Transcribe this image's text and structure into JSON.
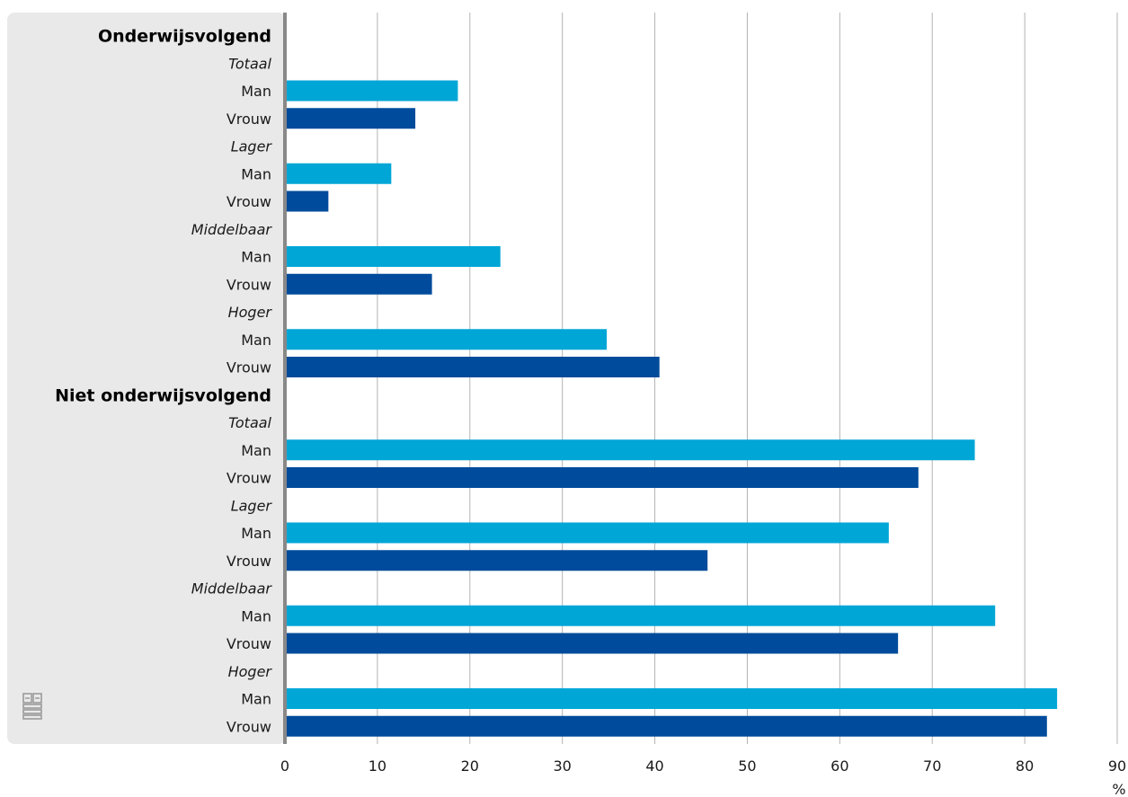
{
  "chart_data": {
    "type": "bar",
    "orientation": "horizontal",
    "xlabel": "%",
    "xlim": [
      0,
      90
    ],
    "xticks": [
      "0",
      "10",
      "20",
      "30",
      "40",
      "50",
      "60",
      "70",
      "80",
      "90"
    ],
    "grid": true,
    "colors": {
      "Man": "#00a6d6",
      "Vrouw": "#004b9b",
      "panel": "#e9e9e9",
      "axis": "#888888",
      "grid": "#b3b3b3"
    },
    "groups": [
      {
        "label": "Onderwijsvolgend",
        "subgroups": [
          {
            "label": "Totaal",
            "bars": [
              {
                "label": "Man",
                "value": 18.7
              },
              {
                "label": "Vrouw",
                "value": 14.1
              }
            ]
          },
          {
            "label": "Lager",
            "bars": [
              {
                "label": "Man",
                "value": 11.5
              },
              {
                "label": "Vrouw",
                "value": 4.7
              }
            ]
          },
          {
            "label": "Middelbaar",
            "bars": [
              {
                "label": "Man",
                "value": 23.3
              },
              {
                "label": "Vrouw",
                "value": 15.9
              }
            ]
          },
          {
            "label": "Hoger",
            "bars": [
              {
                "label": "Man",
                "value": 34.8
              },
              {
                "label": "Vrouw",
                "value": 40.5
              }
            ]
          }
        ]
      },
      {
        "label": "Niet onderwijsvolgend",
        "subgroups": [
          {
            "label": "Totaal",
            "bars": [
              {
                "label": "Man",
                "value": 74.6
              },
              {
                "label": "Vrouw",
                "value": 68.5
              }
            ]
          },
          {
            "label": "Lager",
            "bars": [
              {
                "label": "Man",
                "value": 65.3
              },
              {
                "label": "Vrouw",
                "value": 45.7
              }
            ]
          },
          {
            "label": "Middelbaar",
            "bars": [
              {
                "label": "Man",
                "value": 76.8
              },
              {
                "label": "Vrouw",
                "value": 66.3
              }
            ]
          },
          {
            "label": "Hoger",
            "bars": [
              {
                "label": "Man",
                "value": 83.5
              },
              {
                "label": "Vrouw",
                "value": 82.4
              }
            ]
          }
        ]
      }
    ]
  },
  "logo_icon": "cbs-logo-icon"
}
